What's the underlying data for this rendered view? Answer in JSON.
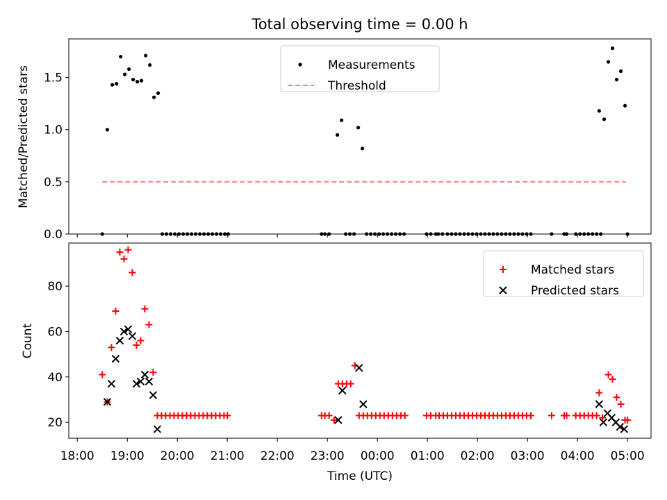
{
  "chart_data": {
    "title": "Total observing time = 0.00 h",
    "xlabel": "Time (UTC)",
    "x_ticks": [
      "18:00",
      "19:00",
      "20:00",
      "21:00",
      "22:00",
      "23:00",
      "00:00",
      "01:00",
      "02:00",
      "03:00",
      "04:00",
      "05:00"
    ],
    "panels": [
      {
        "type": "scatter",
        "ylabel": "Matched/Predicted stars",
        "ylim": [
          0,
          1.87
        ],
        "y_ticks": [
          "0.0",
          "0.5",
          "1.0",
          "1.5"
        ],
        "legend_position": "top-center",
        "series": [
          {
            "name": "Measurements",
            "color": "#000000",
            "marker": "dot",
            "points": [
              [
                "18:30",
                0.0
              ],
              [
                "18:36",
                1.0
              ],
              [
                "18:42",
                1.43
              ],
              [
                "18:47",
                1.44
              ],
              [
                "18:52",
                1.7
              ],
              [
                "18:57",
                1.53
              ],
              [
                "19:02",
                1.58
              ],
              [
                "19:07",
                1.48
              ],
              [
                "19:12",
                1.46
              ],
              [
                "19:17",
                1.47
              ],
              [
                "19:22",
                1.71
              ],
              [
                "19:27",
                1.62
              ],
              [
                "19:32",
                1.31
              ],
              [
                "19:37",
                1.35
              ],
              [
                "19:42",
                0.0
              ],
              [
                "19:47",
                0.0
              ],
              [
                "19:52",
                0.0
              ],
              [
                "19:57",
                0.0
              ],
              [
                "20:02",
                0.0
              ],
              [
                "20:07",
                0.0
              ],
              [
                "20:12",
                0.0
              ],
              [
                "20:17",
                0.0
              ],
              [
                "20:22",
                0.0
              ],
              [
                "20:27",
                0.0
              ],
              [
                "20:32",
                0.0
              ],
              [
                "20:37",
                0.0
              ],
              [
                "20:42",
                0.0
              ],
              [
                "20:47",
                0.0
              ],
              [
                "20:52",
                0.0
              ],
              [
                "20:57",
                0.0
              ],
              [
                "21:01",
                0.0
              ],
              [
                "22:53",
                0.0
              ],
              [
                "22:57",
                0.0
              ],
              [
                "23:02",
                0.0
              ],
              [
                "23:12",
                0.95
              ],
              [
                "23:17",
                1.09
              ],
              [
                "23:22",
                0.0
              ],
              [
                "23:27",
                0.0
              ],
              [
                "23:32",
                0.0
              ],
              [
                "23:37",
                1.02
              ],
              [
                "23:42",
                0.82
              ],
              [
                "23:47",
                0.0
              ],
              [
                "23:52",
                0.0
              ],
              [
                "23:57",
                0.0
              ],
              [
                "00:02",
                0.0
              ],
              [
                "00:07",
                0.0
              ],
              [
                "00:12",
                0.0
              ],
              [
                "00:17",
                0.0
              ],
              [
                "00:22",
                0.0
              ],
              [
                "00:27",
                0.0
              ],
              [
                "00:32",
                0.0
              ],
              [
                "00:59",
                0.0
              ],
              [
                "01:04",
                0.0
              ],
              [
                "01:10",
                0.0
              ],
              [
                "01:13",
                0.0
              ],
              [
                "01:18",
                0.0
              ],
              [
                "01:24",
                0.0
              ],
              [
                "01:29",
                0.0
              ],
              [
                "01:34",
                0.0
              ],
              [
                "01:39",
                0.0
              ],
              [
                "01:44",
                0.0
              ],
              [
                "01:49",
                0.0
              ],
              [
                "01:54",
                0.0
              ],
              [
                "01:59",
                0.0
              ],
              [
                "02:04",
                0.0
              ],
              [
                "02:09",
                0.0
              ],
              [
                "02:14",
                0.0
              ],
              [
                "02:19",
                0.0
              ],
              [
                "02:24",
                0.0
              ],
              [
                "02:29",
                0.0
              ],
              [
                "02:34",
                0.0
              ],
              [
                "02:39",
                0.0
              ],
              [
                "02:44",
                0.0
              ],
              [
                "02:49",
                0.0
              ],
              [
                "02:54",
                0.0
              ],
              [
                "02:59",
                0.0
              ],
              [
                "03:04",
                0.0
              ],
              [
                "03:29",
                0.0
              ],
              [
                "03:44",
                0.0
              ],
              [
                "03:47",
                0.0
              ],
              [
                "03:58",
                0.0
              ],
              [
                "04:03",
                0.0
              ],
              [
                "04:08",
                0.0
              ],
              [
                "04:13",
                0.0
              ],
              [
                "04:18",
                0.0
              ],
              [
                "04:23",
                0.0
              ],
              [
                "04:28",
                0.0
              ],
              [
                "04:26",
                1.18
              ],
              [
                "04:32",
                1.1
              ],
              [
                "04:37",
                1.65
              ],
              [
                "04:42",
                1.78
              ],
              [
                "04:47",
                1.48
              ],
              [
                "04:52",
                1.56
              ],
              [
                "04:57",
                1.23
              ],
              [
                "05:00",
                0.0
              ]
            ]
          },
          {
            "name": "Threshold",
            "color": "#ff7f7f",
            "line_style": "dashed",
            "points": [
              [
                "18:30",
                0.5
              ],
              [
                "04:58",
                0.5
              ]
            ]
          }
        ]
      },
      {
        "type": "scatter",
        "ylabel": "Count",
        "ylim": [
          13,
          99
        ],
        "y_ticks": [
          "20",
          "40",
          "60",
          "80"
        ],
        "legend_position": "top-right",
        "series": [
          {
            "name": "Matched stars",
            "color": "#ff0000",
            "marker": "plus",
            "points": [
              [
                "18:30",
                41
              ],
              [
                "18:36",
                29
              ],
              [
                "18:41",
                53
              ],
              [
                "18:46",
                69
              ],
              [
                "18:51",
                95
              ],
              [
                "18:56",
                92
              ],
              [
                "19:01",
                96
              ],
              [
                "19:06",
                86
              ],
              [
                "19:11",
                54
              ],
              [
                "19:16",
                56
              ],
              [
                "19:21",
                70
              ],
              [
                "19:26",
                63
              ],
              [
                "19:31",
                42
              ],
              [
                "19:36",
                23
              ],
              [
                "19:41",
                23
              ],
              [
                "19:46",
                23
              ],
              [
                "19:51",
                23
              ],
              [
                "19:56",
                23
              ],
              [
                "20:01",
                23
              ],
              [
                "20:06",
                23
              ],
              [
                "20:11",
                23
              ],
              [
                "20:16",
                23
              ],
              [
                "20:21",
                23
              ],
              [
                "20:26",
                23
              ],
              [
                "20:31",
                23
              ],
              [
                "20:36",
                23
              ],
              [
                "20:41",
                23
              ],
              [
                "20:46",
                23
              ],
              [
                "20:51",
                23
              ],
              [
                "20:56",
                23
              ],
              [
                "21:00",
                23
              ],
              [
                "22:53",
                23
              ],
              [
                "22:57",
                23
              ],
              [
                "23:02",
                23
              ],
              [
                "23:08",
                21
              ],
              [
                "23:13",
                37
              ],
              [
                "23:18",
                37
              ],
              [
                "23:23",
                37
              ],
              [
                "23:28",
                37
              ],
              [
                "23:33",
                45
              ],
              [
                "23:38",
                23
              ],
              [
                "23:43",
                23
              ],
              [
                "23:48",
                23
              ],
              [
                "23:53",
                23
              ],
              [
                "23:58",
                23
              ],
              [
                "00:03",
                23
              ],
              [
                "00:08",
                23
              ],
              [
                "00:13",
                23
              ],
              [
                "00:18",
                23
              ],
              [
                "00:23",
                23
              ],
              [
                "00:28",
                23
              ],
              [
                "00:33",
                23
              ],
              [
                "00:59",
                23
              ],
              [
                "01:04",
                23
              ],
              [
                "01:10",
                23
              ],
              [
                "01:14",
                23
              ],
              [
                "01:19",
                23
              ],
              [
                "01:24",
                23
              ],
              [
                "01:29",
                23
              ],
              [
                "01:34",
                23
              ],
              [
                "01:39",
                23
              ],
              [
                "01:44",
                23
              ],
              [
                "01:49",
                23
              ],
              [
                "01:54",
                23
              ],
              [
                "01:59",
                23
              ],
              [
                "02:04",
                23
              ],
              [
                "02:09",
                23
              ],
              [
                "02:14",
                23
              ],
              [
                "02:19",
                23
              ],
              [
                "02:24",
                23
              ],
              [
                "02:29",
                23
              ],
              [
                "02:34",
                23
              ],
              [
                "02:39",
                23
              ],
              [
                "02:44",
                23
              ],
              [
                "02:49",
                23
              ],
              [
                "02:54",
                23
              ],
              [
                "02:59",
                23
              ],
              [
                "03:04",
                23
              ],
              [
                "03:29",
                23
              ],
              [
                "03:44",
                23
              ],
              [
                "03:47",
                23
              ],
              [
                "03:58",
                23
              ],
              [
                "04:03",
                23
              ],
              [
                "04:08",
                23
              ],
              [
                "04:13",
                23
              ],
              [
                "04:18",
                23
              ],
              [
                "04:23",
                23
              ],
              [
                "04:26",
                33
              ],
              [
                "04:30",
                22
              ],
              [
                "04:37",
                41
              ],
              [
                "04:42",
                39
              ],
              [
                "04:47",
                31
              ],
              [
                "04:52",
                28
              ],
              [
                "04:57",
                21
              ],
              [
                "05:00",
                21
              ]
            ]
          },
          {
            "name": "Predicted stars",
            "color": "#000000",
            "marker": "x",
            "points": [
              [
                "18:36",
                29
              ],
              [
                "18:41",
                37
              ],
              [
                "18:46",
                48
              ],
              [
                "18:51",
                56
              ],
              [
                "18:56",
                60
              ],
              [
                "19:01",
                61
              ],
              [
                "19:06",
                58
              ],
              [
                "19:11",
                37
              ],
              [
                "19:16",
                38
              ],
              [
                "19:21",
                41
              ],
              [
                "19:26",
                38
              ],
              [
                "19:31",
                32
              ],
              [
                "19:36",
                17
              ],
              [
                "23:13",
                21
              ],
              [
                "23:18",
                34
              ],
              [
                "23:38",
                44
              ],
              [
                "23:43",
                28
              ],
              [
                "04:26",
                28
              ],
              [
                "04:31",
                20
              ],
              [
                "04:36",
                24
              ],
              [
                "04:41",
                22
              ],
              [
                "04:46",
                20
              ],
              [
                "04:51",
                18
              ],
              [
                "04:56",
                17
              ]
            ]
          }
        ]
      }
    ]
  }
}
